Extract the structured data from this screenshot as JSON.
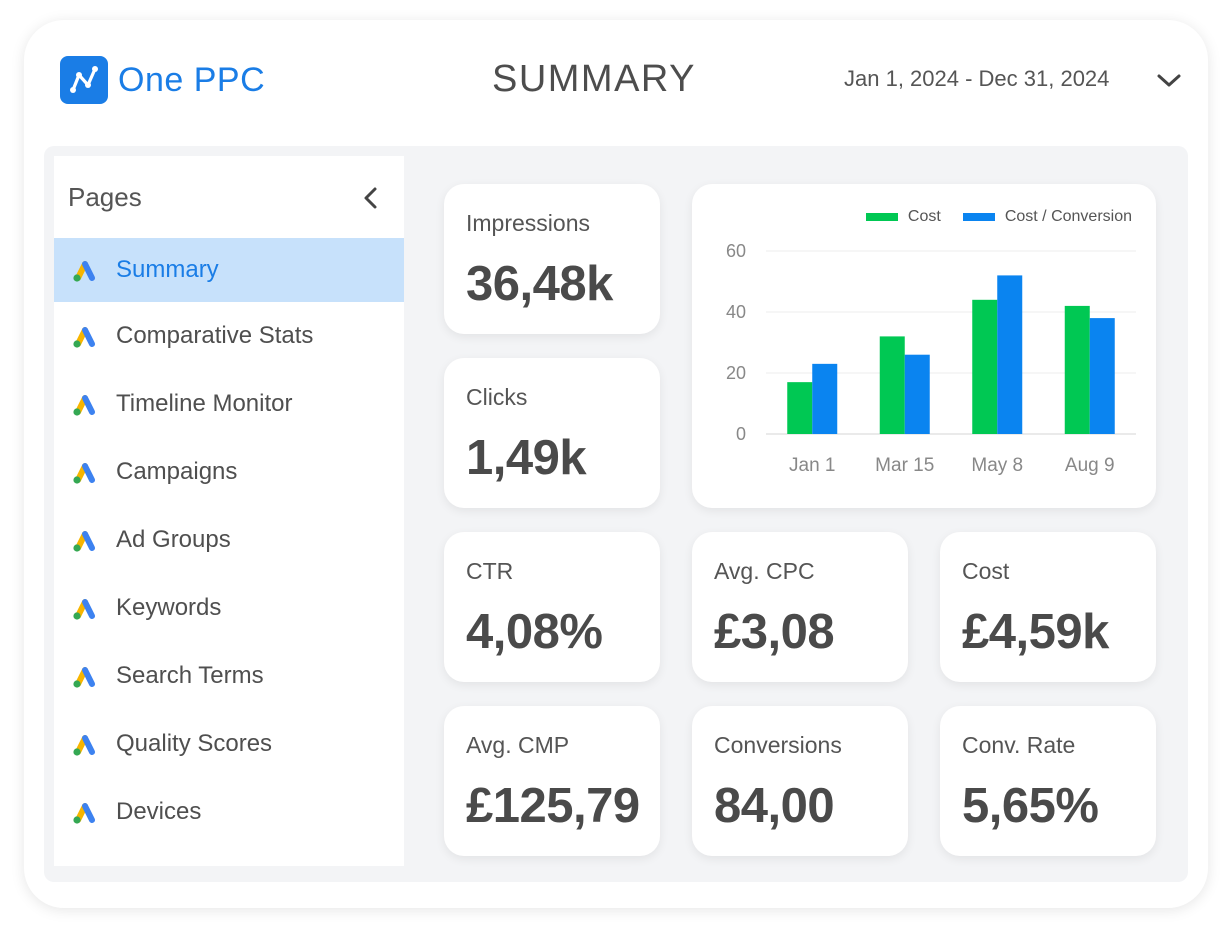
{
  "header": {
    "brand": "One PPC",
    "title": "SUMMARY",
    "date_range": "Jan 1, 2024 - Dec 31, 2024"
  },
  "sidebar": {
    "title": "Pages",
    "items": [
      {
        "label": "Summary",
        "active": true
      },
      {
        "label": "Comparative Stats"
      },
      {
        "label": "Timeline Monitor"
      },
      {
        "label": "Campaigns"
      },
      {
        "label": "Ad Groups"
      },
      {
        "label": "Keywords"
      },
      {
        "label": "Search Terms"
      },
      {
        "label": "Quality Scores"
      },
      {
        "label": "Devices"
      }
    ]
  },
  "kpis": {
    "impressions": {
      "label": "Impressions",
      "value": "36,48k"
    },
    "clicks": {
      "label": "Clicks",
      "value": "1,49k"
    },
    "ctr": {
      "label": "CTR",
      "value": "4,08%"
    },
    "avg_cpc": {
      "label": "Avg. CPC",
      "value": "£3,08"
    },
    "cost": {
      "label": "Cost",
      "value": "£4,59k"
    },
    "avg_cmp": {
      "label": "Avg. CMP",
      "value": "£125,79"
    },
    "conversions": {
      "label": "Conversions",
      "value": "84,00"
    },
    "conv_rate": {
      "label": "Conv. Rate",
      "value": "5,65%"
    }
  },
  "colors": {
    "brand_blue": "#1a7de6",
    "cost_green": "#00c853",
    "cpc_blue": "#0a84f0"
  },
  "chart_data": {
    "type": "bar",
    "categories": [
      "Jan 1",
      "Mar 15",
      "May 8",
      "Aug 9"
    ],
    "series": [
      {
        "name": "Cost",
        "color": "#00c853",
        "values": [
          17,
          32,
          44,
          42
        ]
      },
      {
        "name": "Cost / Conversion",
        "color": "#0a84f0",
        "values": [
          23,
          26,
          52,
          38
        ]
      }
    ],
    "yticks": [
      0,
      20,
      40,
      60
    ],
    "ylim": [
      0,
      60
    ],
    "grid": true,
    "legend": "top-right"
  }
}
